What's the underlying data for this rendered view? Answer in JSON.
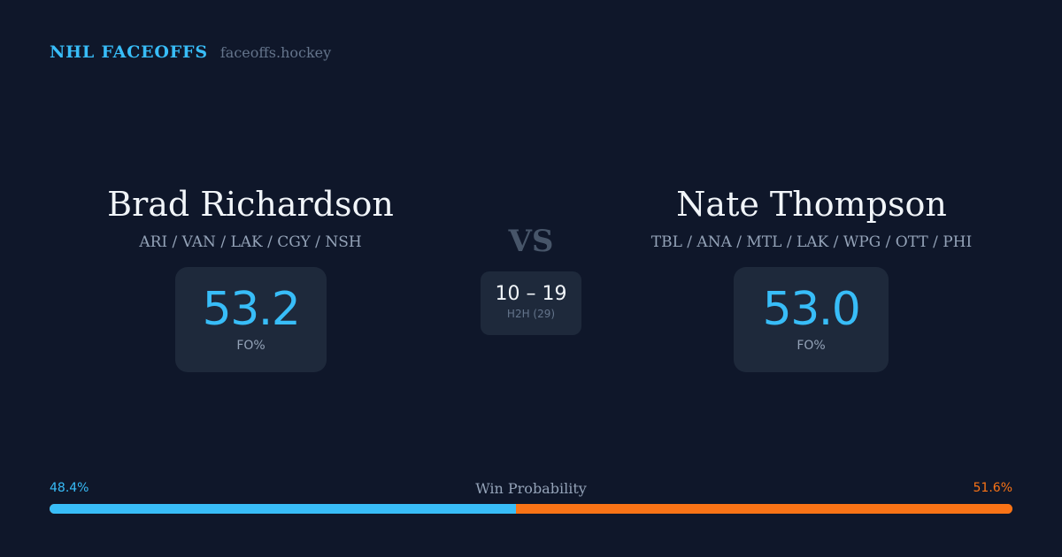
{
  "brand": {
    "name": "NHL FACEOFFS",
    "domain": "faceoffs.hockey"
  },
  "players": [
    {
      "name": "Brad Richardson",
      "teams": "ARI / VAN / LAK / CGY / NSH",
      "fo_pct": "53.2",
      "fo_label": "FO%"
    },
    {
      "name": "Nate Thompson",
      "teams": "TBL / ANA / MTL / LAK / WPG / OTT / PHI",
      "fo_pct": "53.0",
      "fo_label": "FO%"
    }
  ],
  "versus": "VS",
  "h2h": {
    "score": "10 – 19",
    "label": "H2H (29)"
  },
  "win_probability": {
    "title": "Win Probability",
    "left_label": "48.4%",
    "right_label": "51.6%",
    "left_fraction": 0.484,
    "right_fraction": 0.516
  },
  "colors": {
    "background": "#0f172a",
    "card": "#1e293b",
    "accent_blue": "#38bdf8",
    "accent_orange": "#f97316"
  }
}
